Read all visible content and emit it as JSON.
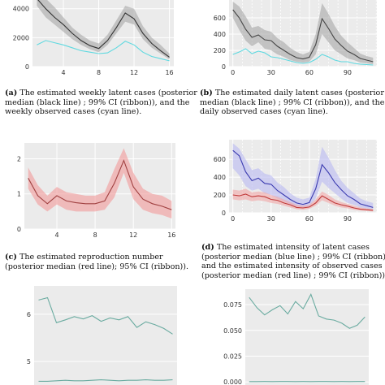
{
  "colors": {
    "panel_bg": "#ebebeb",
    "grid": "#ffffff"
  },
  "chart_data": [
    {
      "id": "a",
      "type": "line",
      "xlim": [
        0.5,
        16.5
      ],
      "ylim": [
        0,
        4600
      ],
      "x_ticks": [
        4,
        8,
        12,
        16
      ],
      "y_ticks": [
        0,
        2000,
        4000
      ],
      "x_tick_labels": [
        "4",
        "8",
        "12",
        "16"
      ],
      "y_tick_labels": [
        "0",
        "2000",
        "4000"
      ],
      "x": [
        1,
        2,
        3,
        4,
        5,
        6,
        7,
        8,
        9,
        10,
        11,
        12,
        13,
        14,
        15,
        16
      ],
      "ribbon": {
        "color": "#a0a0a0",
        "opacity": 0.55,
        "lower": [
          4200,
          3400,
          2900,
          2400,
          1900,
          1500,
          1200,
          1000,
          1500,
          2300,
          3100,
          2900,
          1900,
          1300,
          900,
          500
        ],
        "upper": [
          5200,
          4700,
          4100,
          3400,
          2700,
          2200,
          1800,
          1600,
          2200,
          3200,
          4200,
          4000,
          2800,
          2000,
          1500,
          900
        ]
      },
      "series": [
        {
          "role": "median",
          "color": "#333333",
          "values": [
            4700,
            4000,
            3400,
            2900,
            2300,
            1800,
            1450,
            1250,
            1800,
            2700,
            3700,
            3300,
            2300,
            1600,
            1100,
            650
          ]
        },
        {
          "role": "observed",
          "color": "#5fd9e0",
          "values": [
            1500,
            1800,
            1650,
            1500,
            1300,
            1100,
            1000,
            900,
            950,
            1300,
            1750,
            1500,
            1000,
            700,
            550,
            400
          ]
        }
      ],
      "caption": {
        "label": "(a)",
        "lines": [
          "The estimated weekly latent cases (posterior",
          "median (black line) ; 99% CI (ribbon)), and the",
          "weekly observed cases (cyan line)."
        ]
      }
    },
    {
      "id": "b",
      "type": "line",
      "xlim": [
        -3,
        113
      ],
      "ylim": [
        0,
        820
      ],
      "x_ticks": [
        0,
        30,
        60,
        90
      ],
      "y_ticks": [
        0,
        200,
        400,
        600
      ],
      "x_tick_labels": [
        "0",
        "30",
        "60",
        "90"
      ],
      "y_tick_labels": [
        "0",
        "200",
        "400",
        "600"
      ],
      "minor_vlines": true,
      "x": [
        0,
        5,
        10,
        15,
        20,
        25,
        30,
        35,
        40,
        45,
        50,
        55,
        60,
        65,
        70,
        75,
        80,
        85,
        90,
        95,
        100,
        105,
        110
      ],
      "ribbon": {
        "color": "#a0a0a0",
        "opacity": 0.55,
        "lower": [
          600,
          450,
          320,
          250,
          300,
          220,
          200,
          150,
          120,
          80,
          60,
          50,
          60,
          150,
          400,
          300,
          200,
          150,
          100,
          80,
          50,
          40,
          30
        ],
        "upper": [
          800,
          740,
          620,
          480,
          500,
          450,
          430,
          350,
          300,
          230,
          180,
          150,
          180,
          400,
          780,
          650,
          500,
          380,
          300,
          230,
          160,
          130,
          110
        ]
      },
      "series": [
        {
          "role": "median",
          "color": "#444444",
          "values": [
            700,
            600,
            460,
            360,
            390,
            330,
            320,
            250,
            200,
            150,
            110,
            95,
            115,
            270,
            590,
            470,
            340,
            260,
            190,
            150,
            100,
            80,
            60
          ]
        },
        {
          "role": "observed",
          "color": "#5fd9e0",
          "values": [
            150,
            180,
            220,
            160,
            190,
            170,
            120,
            110,
            90,
            70,
            50,
            40,
            50,
            90,
            150,
            120,
            80,
            60,
            60,
            40,
            30,
            25,
            20
          ]
        }
      ],
      "caption": {
        "label": "(b)",
        "lines": [
          "The estimated daily latent cases (posterior",
          "median (black line) ; 99% CI (ribbon)), and the",
          "daily observed cases (cyan line)."
        ]
      }
    },
    {
      "id": "c",
      "type": "line",
      "xlim": [
        0.6,
        16.4
      ],
      "ylim": [
        0,
        2.45
      ],
      "x_ticks": [
        4,
        8,
        12,
        16
      ],
      "y_ticks": [
        0,
        1,
        2
      ],
      "x_tick_labels": [
        "4",
        "8",
        "12",
        "16"
      ],
      "y_tick_labels": [
        "0",
        "1",
        "2"
      ],
      "x": [
        1,
        2,
        3,
        4,
        5,
        6,
        7,
        8,
        9,
        10,
        11,
        12,
        13,
        14,
        15,
        16
      ],
      "ribbon": {
        "color": "#f29a9a",
        "opacity": 0.6,
        "lower": [
          1.15,
          0.7,
          0.5,
          0.7,
          0.55,
          0.5,
          0.5,
          0.5,
          0.55,
          0.9,
          1.6,
          0.85,
          0.55,
          0.45,
          0.4,
          0.3
        ],
        "upper": [
          1.75,
          1.25,
          0.95,
          1.2,
          1.05,
          1.0,
          0.95,
          0.95,
          1.05,
          1.7,
          2.3,
          1.6,
          1.15,
          1.0,
          0.95,
          0.8
        ]
      },
      "series": [
        {
          "role": "median",
          "color": "#a04040",
          "values": [
            1.45,
            0.95,
            0.72,
            0.95,
            0.8,
            0.75,
            0.72,
            0.72,
            0.8,
            1.3,
            1.95,
            1.2,
            0.85,
            0.72,
            0.65,
            0.55
          ]
        }
      ],
      "caption": {
        "label": "(c)",
        "lines": [
          "The estimated reproduction number",
          "(posterior median (red line); 95% CI (ribbon))."
        ]
      }
    },
    {
      "id": "d",
      "type": "line",
      "xlim": [
        -3,
        113
      ],
      "ylim": [
        0,
        820
      ],
      "x_ticks": [
        0,
        30,
        60,
        90
      ],
      "y_ticks": [
        0,
        200,
        400,
        600
      ],
      "x_tick_labels": [
        "0",
        "30",
        "60",
        "90"
      ],
      "y_tick_labels": [
        "0",
        "200",
        "400",
        "600"
      ],
      "minor_vlines": true,
      "x": [
        0,
        5,
        10,
        15,
        20,
        25,
        30,
        35,
        40,
        45,
        50,
        55,
        60,
        65,
        70,
        75,
        80,
        85,
        90,
        95,
        100,
        105,
        110
      ],
      "ribbons": [
        {
          "color": "#b9b9f2",
          "opacity": 0.6,
          "lower": [
            500,
            420,
            300,
            250,
            270,
            220,
            200,
            160,
            130,
            90,
            70,
            60,
            70,
            160,
            350,
            280,
            220,
            160,
            110,
            90,
            60,
            50,
            40
          ],
          "upper": [
            780,
            720,
            600,
            480,
            500,
            440,
            420,
            340,
            290,
            220,
            170,
            150,
            170,
            380,
            740,
            620,
            480,
            360,
            280,
            220,
            160,
            130,
            110
          ]
        },
        {
          "color": "#f2a6a6",
          "opacity": 0.6,
          "lower": [
            150,
            140,
            150,
            130,
            140,
            130,
            110,
            100,
            80,
            60,
            40,
            35,
            45,
            80,
            140,
            110,
            80,
            60,
            50,
            35,
            25,
            20,
            15
          ],
          "upper": [
            260,
            250,
            270,
            230,
            240,
            230,
            200,
            180,
            150,
            120,
            90,
            80,
            90,
            150,
            240,
            200,
            150,
            120,
            100,
            80,
            60,
            50,
            40
          ]
        }
      ],
      "series": [
        {
          "role": "latent-median",
          "color": "#3b3bb0",
          "values": [
            700,
            640,
            460,
            360,
            390,
            330,
            320,
            250,
            200,
            150,
            110,
            95,
            115,
            270,
            540,
            450,
            340,
            260,
            190,
            150,
            100,
            80,
            60
          ]
        },
        {
          "role": "observed-median",
          "color": "#c03a3a",
          "values": [
            200,
            190,
            210,
            180,
            190,
            180,
            150,
            140,
            110,
            90,
            60,
            55,
            65,
            110,
            190,
            150,
            110,
            90,
            75,
            55,
            40,
            35,
            28
          ]
        }
      ],
      "caption": {
        "label": "(d)",
        "lines": [
          "The estimated intensity of latent cases",
          "(posterior median (blue line) ; 99% CI (ribbon))",
          "and the estimated intensity of observed cases",
          "(posterior median (red line) ; 99% CI (ribbon))."
        ]
      }
    },
    {
      "id": "e",
      "type": "line",
      "xlim": [
        0.5,
        16.5
      ],
      "ylim": [
        4.5,
        6.6
      ],
      "y_ticks": [
        5,
        6
      ],
      "y_tick_labels": [
        "5",
        "6"
      ],
      "x": [
        1,
        2,
        3,
        4,
        5,
        6,
        7,
        8,
        9,
        10,
        11,
        12,
        13,
        14,
        15,
        16
      ],
      "series": [
        {
          "role": "upper",
          "color": "#6aaba0",
          "values": [
            6.3,
            6.35,
            5.82,
            5.88,
            5.95,
            5.9,
            5.97,
            5.85,
            5.92,
            5.88,
            5.95,
            5.72,
            5.84,
            5.78,
            5.7,
            5.58
          ]
        },
        {
          "role": "lower",
          "color": "#6aaba0",
          "values": [
            4.58,
            4.58,
            4.59,
            4.6,
            4.59,
            4.59,
            4.6,
            4.61,
            4.6,
            4.59,
            4.6,
            4.6,
            4.61,
            4.6,
            4.6,
            4.61
          ]
        }
      ]
    },
    {
      "id": "f",
      "type": "line",
      "xlim": [
        0.5,
        16.5
      ],
      "ylim": [
        -0.003,
        0.09
      ],
      "y_ticks": [
        0.0,
        0.025,
        0.05,
        0.075
      ],
      "y_tick_labels": [
        "0.000",
        "0.025",
        "0.050",
        "0.075"
      ],
      "x": [
        1,
        2,
        3,
        4,
        5,
        6,
        7,
        8,
        9,
        10,
        11,
        12,
        13,
        14,
        15,
        16
      ],
      "series": [
        {
          "role": "upper",
          "color": "#6aaba0",
          "values": [
            0.082,
            0.072,
            0.065,
            0.07,
            0.074,
            0.066,
            0.078,
            0.071,
            0.085,
            0.064,
            0.061,
            0.06,
            0.057,
            0.052,
            0.055,
            0.063
          ]
        },
        {
          "role": "lower",
          "color": "#6aaba0",
          "values": [
            0.0003,
            0.0003,
            0.0004,
            0.0003,
            0.0004,
            0.0004,
            0.0003,
            0.0004,
            0.0003,
            0.0004,
            0.0004,
            0.0003,
            0.0004,
            0.0003,
            0.0004,
            0.0004
          ]
        }
      ]
    }
  ]
}
